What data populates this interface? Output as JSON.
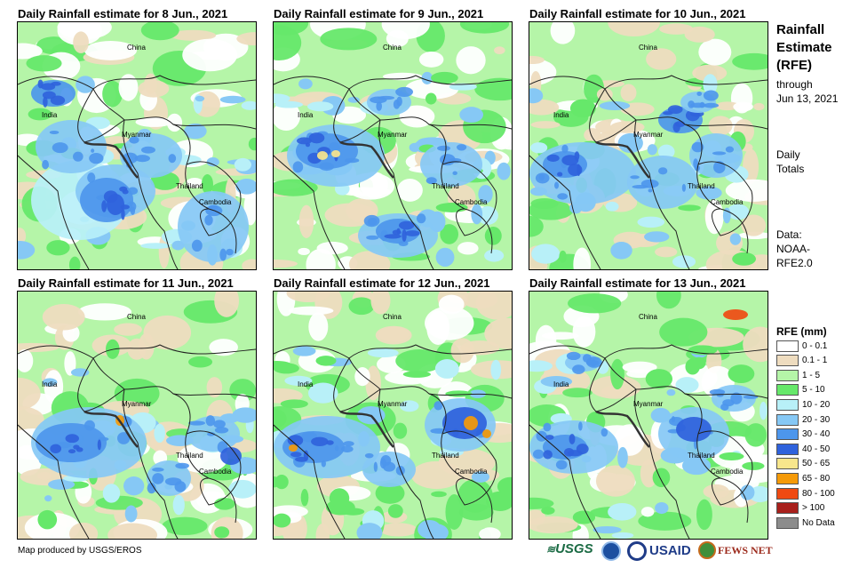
{
  "panels": [
    {
      "title": "Daily Rainfall estimate for 8 Jun., 2021"
    },
    {
      "title": "Daily Rainfall estimate for 9 Jun., 2021"
    },
    {
      "title": "Daily Rainfall estimate for 10 Jun., 2021"
    },
    {
      "title": "Daily Rainfall estimate for 11 Jun., 2021"
    },
    {
      "title": "Daily Rainfall estimate for 12 Jun., 2021"
    },
    {
      "title": "Daily Rainfall estimate for 13 Jun., 2021"
    }
  ],
  "places": {
    "china": "China",
    "india": "India",
    "myanmar": "Myanmar",
    "thailand": "Thailand",
    "cambodia": "Cambodia"
  },
  "sidebar": {
    "title_line1": "Rainfall",
    "title_line2": "Estimate",
    "title_line3": "(RFE)",
    "through_line1": "through",
    "through_line2": "Jun 13, 2021",
    "daily_line1": "Daily",
    "daily_line2": "Totals",
    "data_line1": "Data:",
    "data_line2": "NOAA-",
    "data_line3": "RFE2.0"
  },
  "legend": {
    "title": "RFE (mm)",
    "items": [
      {
        "label": "0 - 0.1",
        "color": "#ffffff"
      },
      {
        "label": "0.1 - 1",
        "color": "#eedcbf"
      },
      {
        "label": "1 - 5",
        "color": "#b5f5a8"
      },
      {
        "label": "5 - 10",
        "color": "#66e86a"
      },
      {
        "label": "10 - 20",
        "color": "#b8f0f8"
      },
      {
        "label": "20 - 30",
        "color": "#86c8f5"
      },
      {
        "label": "30 - 40",
        "color": "#4d96ec"
      },
      {
        "label": "40 - 50",
        "color": "#2f62dc"
      },
      {
        "label": "50 - 65",
        "color": "#f8e68c"
      },
      {
        "label": "65 - 80",
        "color": "#f59a08"
      },
      {
        "label": "80 - 100",
        "color": "#f04a12"
      },
      {
        "label": "> 100",
        "color": "#a8201c"
      },
      {
        "label": "No Data",
        "color": "#8c8c8c"
      }
    ]
  },
  "credit": "Map produced by USGS/EROS",
  "logos": {
    "usgs": "USGS",
    "usaid": "USAID",
    "fewsnet": "FEWS NET"
  }
}
